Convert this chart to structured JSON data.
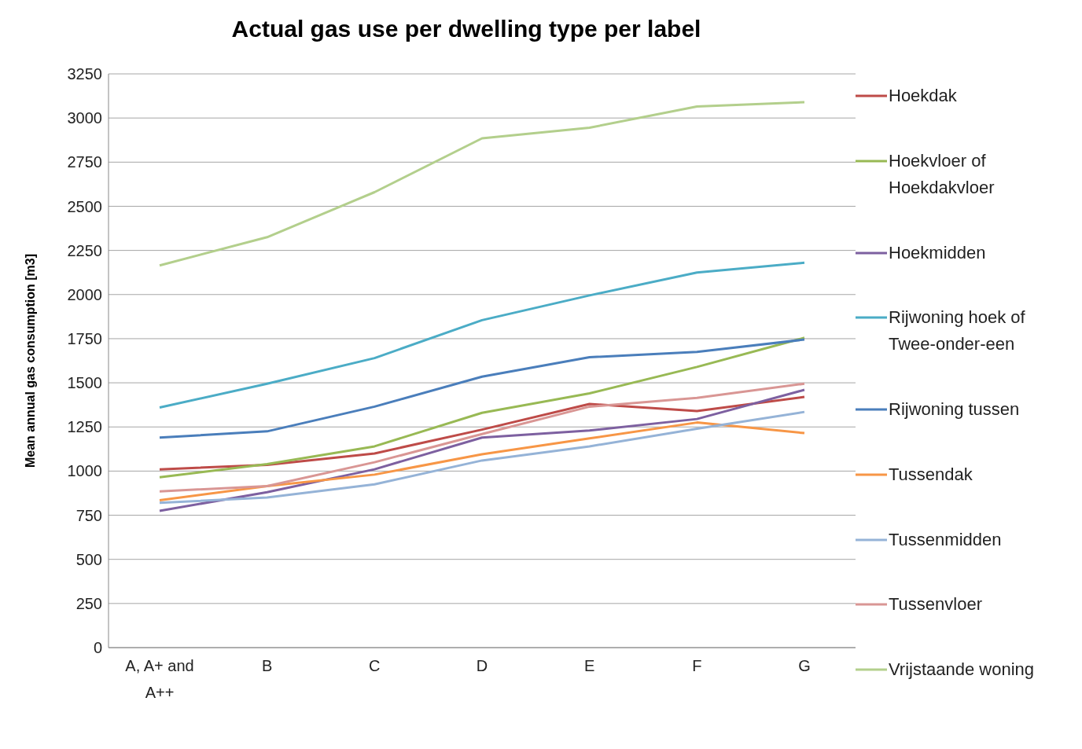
{
  "chart_data": {
    "type": "line",
    "title": "Actual gas use per dwelling type per label",
    "ylabel": "Mean annual gas consumption [m3]",
    "categories": [
      "A, A+ and A++",
      "B",
      "C",
      "D",
      "E",
      "F",
      "G"
    ],
    "ylim": [
      0,
      3250
    ],
    "yticks": [
      0,
      250,
      500,
      750,
      1000,
      1250,
      1500,
      1750,
      2000,
      2250,
      2500,
      2750,
      3000,
      3250
    ],
    "grid": "y",
    "legend": "right",
    "marker": "none",
    "line_style": "solid",
    "series": [
      {
        "name": "Hoekdak",
        "color": "#be4b48",
        "values": [
          1010,
          1035,
          1100,
          1235,
          1380,
          1340,
          1420
        ]
      },
      {
        "name": "Hoekvloer of Hoekdakvloer",
        "color": "#98b954",
        "values": [
          965,
          1040,
          1140,
          1330,
          1440,
          1590,
          1755
        ]
      },
      {
        "name": "Hoekmidden",
        "color": "#7d60a0",
        "values": [
          775,
          880,
          1010,
          1190,
          1230,
          1295,
          1460
        ]
      },
      {
        "name": "Rijwoning hoek of Twee-onder-een",
        "color": "#4bacc6",
        "values": [
          1360,
          1495,
          1640,
          1855,
          1995,
          2125,
          2180
        ]
      },
      {
        "name": "Rijwoning tussen",
        "color": "#4a7ebb",
        "values": [
          1190,
          1225,
          1365,
          1535,
          1645,
          1675,
          1745
        ]
      },
      {
        "name": "Tussendak",
        "color": "#f79646",
        "values": [
          835,
          915,
          980,
          1095,
          1185,
          1275,
          1215
        ]
      },
      {
        "name": "Tussenmidden",
        "color": "#95b3d7",
        "values": [
          820,
          850,
          925,
          1060,
          1140,
          1240,
          1335
        ]
      },
      {
        "name": "Tussenvloer",
        "color": "#d99694",
        "values": [
          885,
          915,
          1050,
          1210,
          1365,
          1415,
          1495
        ]
      },
      {
        "name": "Vrijstaande woning",
        "color": "#b3cf8c",
        "values": [
          2165,
          2325,
          2580,
          2885,
          2945,
          3065,
          3090
        ]
      }
    ]
  }
}
